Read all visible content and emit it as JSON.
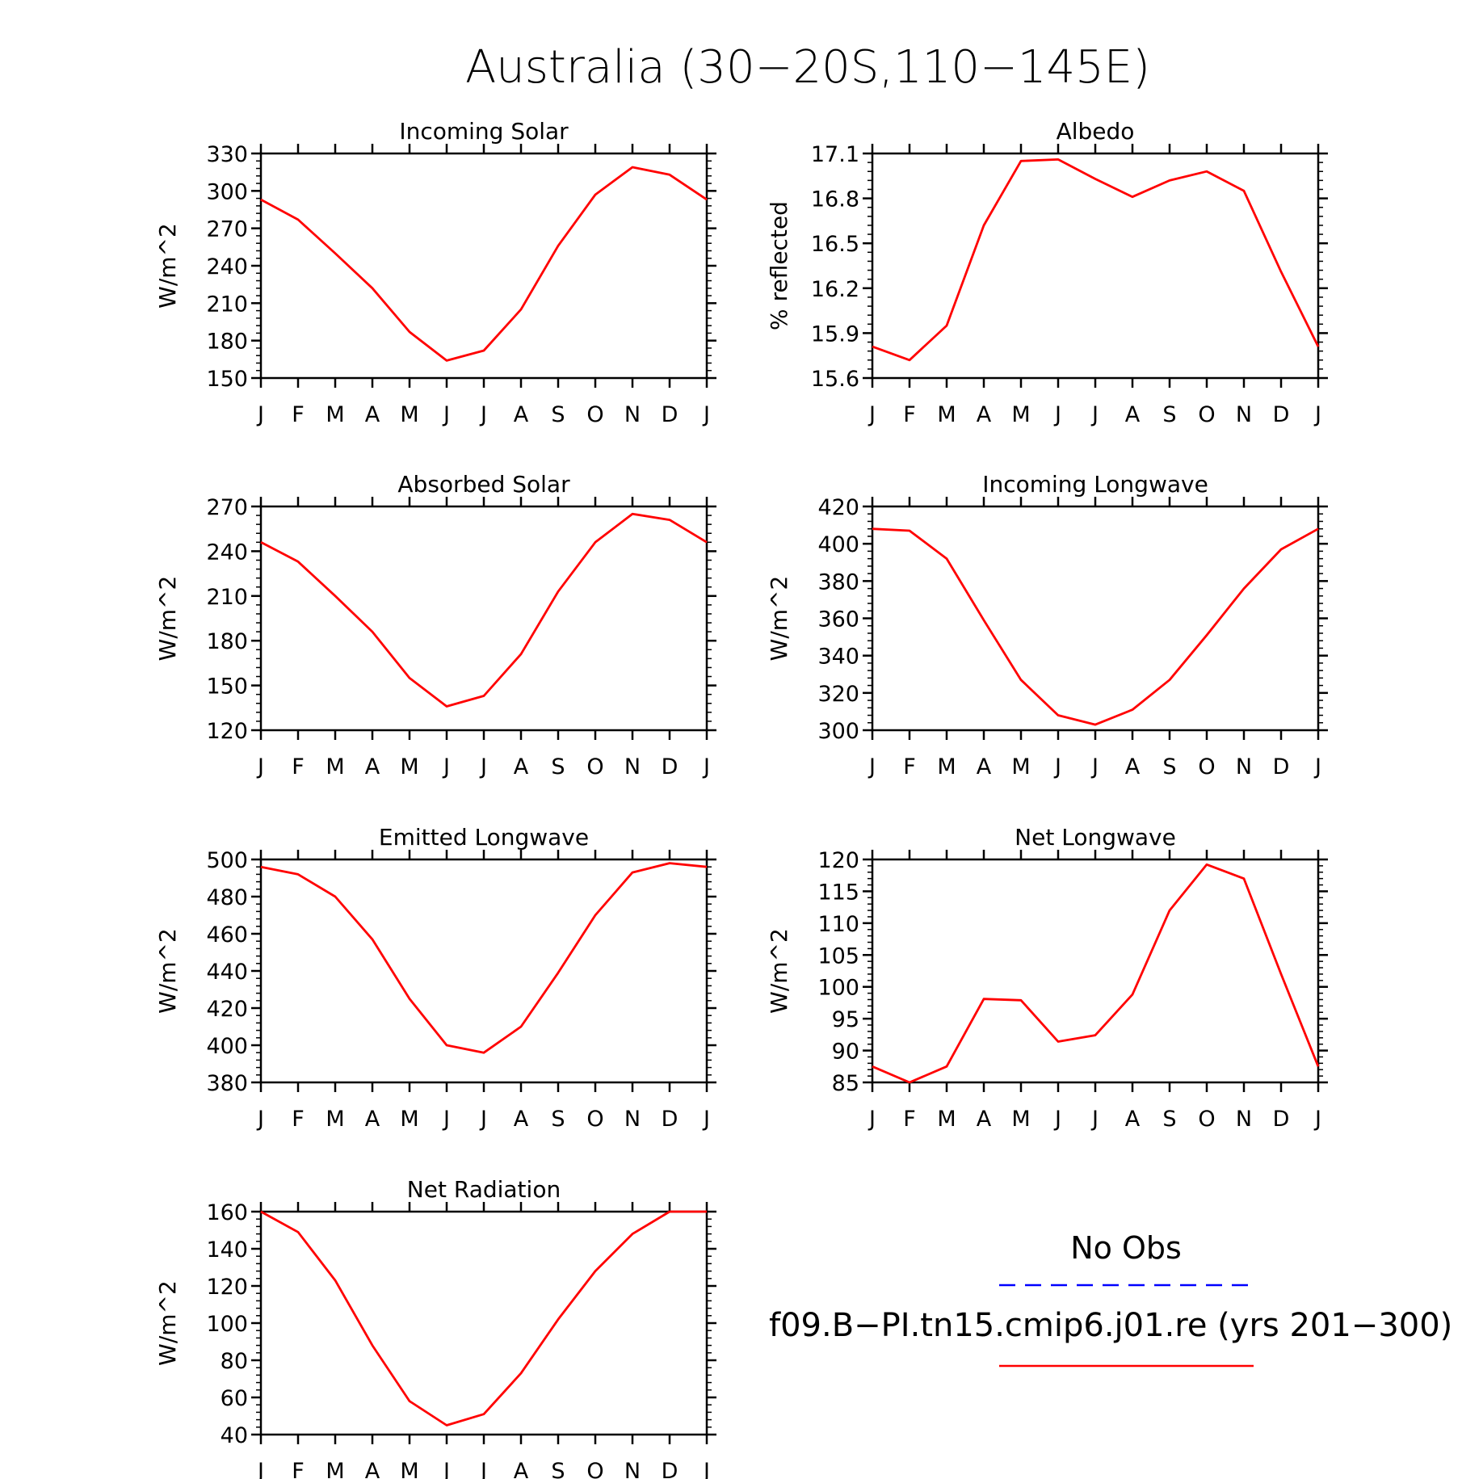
{
  "figure": {
    "title": "Australia (30−20S,110−145E)",
    "line_color": "#ff0000",
    "obs_color": "#0000ff"
  },
  "legend": {
    "obs_label": "No Obs",
    "model_label": "f09.B−PI.tn15.cmip6.j01.re (yrs 201−300)"
  },
  "chart_data": [
    {
      "type": "line",
      "title": "Incoming Solar",
      "ylabel": "W/m^2",
      "x": [
        "J",
        "F",
        "M",
        "A",
        "M",
        "J",
        "J",
        "A",
        "S",
        "O",
        "N",
        "D",
        "J"
      ],
      "ylim": [
        150,
        330
      ],
      "yticks": [
        150,
        180,
        210,
        240,
        270,
        300,
        330
      ],
      "ytick_labels": [
        "150",
        "180",
        "210",
        "240",
        "270",
        "300",
        "330"
      ],
      "series": [
        {
          "values": [
            293,
            277,
            250,
            222,
            187,
            164,
            172,
            205,
            256,
            297,
            319,
            313,
            293
          ]
        }
      ]
    },
    {
      "type": "line",
      "title": "Albedo",
      "ylabel": "% reflected",
      "x": [
        "J",
        "F",
        "M",
        "A",
        "M",
        "J",
        "J",
        "A",
        "S",
        "O",
        "N",
        "D",
        "J"
      ],
      "ylim": [
        15.6,
        17.1
      ],
      "yticks": [
        15.6,
        15.9,
        16.2,
        16.5,
        16.8,
        17.1
      ],
      "ytick_labels": [
        "15.6",
        "15.9",
        "16.2",
        "16.5",
        "16.8",
        "17.1"
      ],
      "series": [
        {
          "values": [
            15.81,
            15.72,
            15.95,
            16.62,
            17.05,
            17.06,
            16.93,
            16.81,
            16.92,
            16.98,
            16.85,
            16.31,
            15.81
          ]
        }
      ]
    },
    {
      "type": "line",
      "title": "Absorbed Solar",
      "ylabel": "W/m^2",
      "x": [
        "J",
        "F",
        "M",
        "A",
        "M",
        "J",
        "J",
        "A",
        "S",
        "O",
        "N",
        "D",
        "J"
      ],
      "ylim": [
        120,
        270
      ],
      "yticks": [
        120,
        150,
        180,
        210,
        240,
        270
      ],
      "ytick_labels": [
        "120",
        "150",
        "180",
        "210",
        "240",
        "270"
      ],
      "series": [
        {
          "values": [
            246,
            233,
            210,
            186,
            155,
            136,
            143,
            171,
            213,
            246,
            265,
            261,
            246
          ]
        }
      ]
    },
    {
      "type": "line",
      "title": "Incoming Longwave",
      "ylabel": "W/m^2",
      "x": [
        "J",
        "F",
        "M",
        "A",
        "M",
        "J",
        "J",
        "A",
        "S",
        "O",
        "N",
        "D",
        "J"
      ],
      "ylim": [
        300,
        420
      ],
      "yticks": [
        300,
        320,
        340,
        360,
        380,
        400,
        420
      ],
      "ytick_labels": [
        "300",
        "320",
        "340",
        "360",
        "380",
        "400",
        "420"
      ],
      "series": [
        {
          "values": [
            408,
            407,
            392,
            359,
            327,
            308,
            303,
            311,
            327,
            351,
            376,
            397,
            408
          ]
        }
      ]
    },
    {
      "type": "line",
      "title": "Emitted Longwave",
      "ylabel": "W/m^2",
      "x": [
        "J",
        "F",
        "M",
        "A",
        "M",
        "J",
        "J",
        "A",
        "S",
        "O",
        "N",
        "D",
        "J"
      ],
      "ylim": [
        380,
        500
      ],
      "yticks": [
        380,
        400,
        420,
        440,
        460,
        480,
        500
      ],
      "ytick_labels": [
        "380",
        "400",
        "420",
        "440",
        "460",
        "480",
        "500"
      ],
      "series": [
        {
          "values": [
            496,
            492,
            480,
            457,
            425,
            400,
            396,
            410,
            439,
            470,
            493,
            498,
            496
          ]
        }
      ]
    },
    {
      "type": "line",
      "title": "Net Longwave",
      "ylabel": "W/m^2",
      "x": [
        "J",
        "F",
        "M",
        "A",
        "M",
        "J",
        "J",
        "A",
        "S",
        "O",
        "N",
        "D",
        "J"
      ],
      "ylim": [
        85,
        120
      ],
      "yticks": [
        85,
        90,
        95,
        100,
        105,
        110,
        115,
        120
      ],
      "ytick_labels": [
        "85",
        "90",
        "95",
        "100",
        "105",
        "110",
        "115",
        "120"
      ],
      "series": [
        {
          "values": [
            87.5,
            85,
            87.5,
            98.1,
            97.9,
            91.4,
            92.4,
            98.8,
            112,
            119.2,
            117,
            102,
            87.5
          ]
        }
      ]
    },
    {
      "type": "line",
      "title": "Net Radiation",
      "ylabel": "W/m^2",
      "x": [
        "J",
        "F",
        "M",
        "A",
        "M",
        "J",
        "J",
        "A",
        "S",
        "O",
        "N",
        "D",
        "J"
      ],
      "ylim": [
        40,
        160
      ],
      "yticks": [
        40,
        60,
        80,
        100,
        120,
        140,
        160
      ],
      "ytick_labels": [
        "40",
        "60",
        "80",
        "100",
        "120",
        "140",
        "160"
      ],
      "series": [
        {
          "values": [
            160,
            149,
            123,
            88,
            58,
            45,
            51,
            73,
            102,
            128,
            148,
            160,
            160
          ]
        }
      ]
    }
  ]
}
